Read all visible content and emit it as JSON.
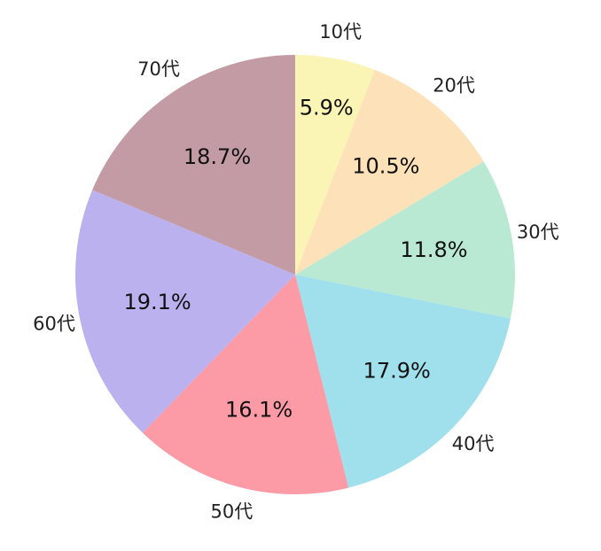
{
  "chart_data": {
    "type": "pie",
    "categories": [
      "10代",
      "20代",
      "30代",
      "40代",
      "50代",
      "60代",
      "70代"
    ],
    "values": [
      5.9,
      10.5,
      11.8,
      17.9,
      16.1,
      19.1,
      18.7
    ],
    "value_labels": [
      "5.9%",
      "10.5%",
      "11.8%",
      "17.9%",
      "16.1%",
      "19.1%",
      "18.7%"
    ],
    "colors": [
      "#faf5b5",
      "#fde1b8",
      "#bae9d3",
      "#a0e0ec",
      "#fc9aa6",
      "#bcb1ef",
      "#c39ba4"
    ]
  }
}
